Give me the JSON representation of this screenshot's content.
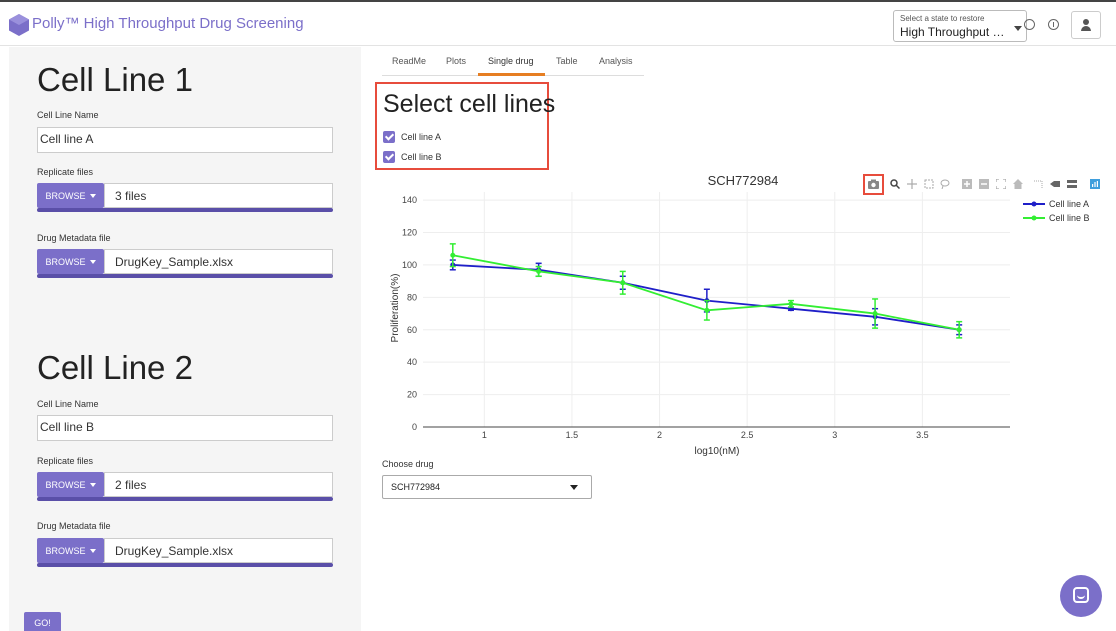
{
  "header": {
    "app_title": "Polly™ High Throughput Drug Screening",
    "state_label": "Select a state to restore",
    "state_value": "High Throughput Drug Screening",
    "icons": [
      "logo-icon",
      "history-icon",
      "info-icon",
      "user-icon"
    ]
  },
  "sidebar": {
    "cell_lines": [
      {
        "title": "Cell Line 1",
        "name_label": "Cell Line Name",
        "name_value": "Cell line A",
        "replicate_label": "Replicate files",
        "replicate_browse": "BROWSE",
        "replicate_value": "3 files",
        "metadata_label": "Drug Metadata file",
        "metadata_browse": "BROWSE",
        "metadata_value": "DrugKey_Sample.xlsx"
      },
      {
        "title": "Cell Line 2",
        "name_label": "Cell Line Name",
        "name_value": "Cell line B",
        "replicate_label": "Replicate files",
        "replicate_browse": "BROWSE",
        "replicate_value": "2 files",
        "metadata_label": "Drug Metadata file",
        "metadata_browse": "BROWSE",
        "metadata_value": "DrugKey_Sample.xlsx"
      }
    ],
    "go_label": "GO!"
  },
  "tabs": [
    {
      "label": "ReadMe",
      "active": false
    },
    {
      "label": "Plots",
      "active": false
    },
    {
      "label": "Single drug",
      "active": true
    },
    {
      "label": "Table",
      "active": false
    },
    {
      "label": "Analysis",
      "active": false
    }
  ],
  "select_panel": {
    "title": "Select cell lines",
    "options": [
      {
        "label": "Cell line A",
        "checked": true
      },
      {
        "label": "Cell line B",
        "checked": true
      }
    ]
  },
  "drug_select": {
    "label": "Choose drug",
    "value": "SCH772984"
  },
  "colors": {
    "accent": "#7b6fc9",
    "series_a": "#1f1fc8",
    "series_b": "#33ee33",
    "highlight": "#e74c3c",
    "tab_active": "#e67e22"
  },
  "chart_data": {
    "type": "line",
    "title": "SCH772984",
    "xlabel": "log10(nM)",
    "ylabel": "Proliferation(%)",
    "xlim": [
      0.65,
      4.0
    ],
    "ylim": [
      0,
      145
    ],
    "xticks": [
      1,
      1.5,
      2,
      2.5,
      3,
      3.5
    ],
    "yticks": [
      0,
      20,
      40,
      60,
      80,
      100,
      120,
      140
    ],
    "legend_position": "top-right",
    "grid": true,
    "series": [
      {
        "name": "Cell line A",
        "color": "#1f1fc8",
        "x": [
          0.82,
          1.31,
          1.79,
          2.27,
          2.75,
          3.23,
          3.71
        ],
        "y": [
          100,
          97,
          89,
          78,
          73,
          68,
          60
        ],
        "err": [
          3,
          4,
          4,
          7,
          1,
          5,
          3
        ]
      },
      {
        "name": "Cell line B",
        "color": "#33ee33",
        "x": [
          0.82,
          1.31,
          1.79,
          2.27,
          2.75,
          3.23,
          3.71
        ],
        "y": [
          106,
          96,
          89,
          72,
          76,
          70,
          60
        ],
        "err": [
          7,
          3,
          7,
          6,
          2,
          9,
          5
        ]
      }
    ]
  }
}
